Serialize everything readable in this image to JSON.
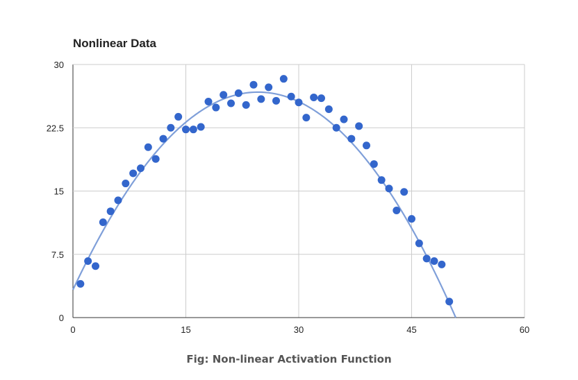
{
  "chart_data": {
    "type": "scatter",
    "title": "Nonlinear Data",
    "xlabel": "",
    "ylabel": "",
    "xlim": [
      0,
      60
    ],
    "ylim": [
      0,
      30
    ],
    "x_ticks": [
      "0",
      "15",
      "30",
      "45",
      "60"
    ],
    "y_ticks": [
      "0",
      "7.5",
      "15",
      "22.5",
      "30"
    ],
    "x_tick_values": [
      0,
      15,
      30,
      45,
      60
    ],
    "y_tick_values": [
      0,
      7.5,
      15,
      22.5,
      30
    ],
    "grid": true,
    "legend": "none",
    "points": [
      [
        1,
        4.0
      ],
      [
        2,
        6.7
      ],
      [
        3,
        6.1
      ],
      [
        4,
        11.3
      ],
      [
        5,
        12.6
      ],
      [
        6,
        13.9
      ],
      [
        7,
        15.9
      ],
      [
        8,
        17.1
      ],
      [
        9,
        17.7
      ],
      [
        10,
        20.2
      ],
      [
        11,
        18.8
      ],
      [
        12,
        21.2
      ],
      [
        13,
        22.5
      ],
      [
        14,
        23.8
      ],
      [
        15,
        22.3
      ],
      [
        16,
        22.3
      ],
      [
        17,
        22.6
      ],
      [
        18,
        25.6
      ],
      [
        19,
        24.9
      ],
      [
        20,
        26.4
      ],
      [
        21,
        25.4
      ],
      [
        22,
        26.6
      ],
      [
        23,
        25.2
      ],
      [
        24,
        27.6
      ],
      [
        25,
        25.9
      ],
      [
        26,
        27.3
      ],
      [
        27,
        25.7
      ],
      [
        28,
        28.3
      ],
      [
        29,
        26.2
      ],
      [
        30,
        25.5
      ],
      [
        31,
        23.7
      ],
      [
        32,
        26.1
      ],
      [
        33,
        26.0
      ],
      [
        34,
        24.7
      ],
      [
        35,
        22.5
      ],
      [
        36,
        23.5
      ],
      [
        37,
        21.2
      ],
      [
        38,
        22.7
      ],
      [
        39,
        20.4
      ],
      [
        40,
        18.2
      ],
      [
        41,
        16.3
      ],
      [
        42,
        15.3
      ],
      [
        43,
        12.7
      ],
      [
        44,
        14.9
      ],
      [
        45,
        11.7
      ],
      [
        46,
        8.8
      ],
      [
        47,
        7.0
      ],
      [
        48,
        6.7
      ],
      [
        49,
        6.3
      ],
      [
        50,
        1.9
      ]
    ],
    "trendline": {
      "type": "polynomial",
      "coefficients": [
        3.3,
        1.905,
        -0.03873
      ]
    },
    "colors": {
      "points": "#3366cc",
      "trendline": "#7f9fd9",
      "grid": "#cccccc",
      "axis": "#333333",
      "text": "#222222"
    }
  },
  "caption": "Fig: Non-linear Activation Function"
}
